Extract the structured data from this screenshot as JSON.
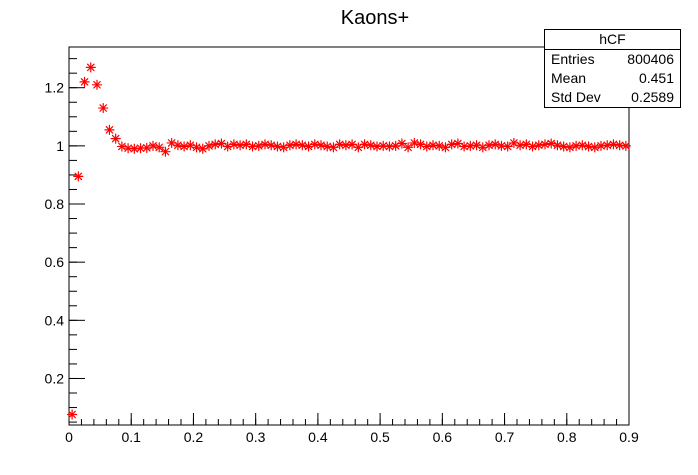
{
  "chart_data": {
    "type": "scatter",
    "title": "Kaons+",
    "xlim": [
      0,
      0.9
    ],
    "ylim": [
      0.04,
      1.34
    ],
    "x_ticks": [
      "0",
      "0.1",
      "0.2",
      "0.3",
      "0.4",
      "0.5",
      "0.6",
      "0.7",
      "0.8",
      "0.9"
    ],
    "y_ticks": [
      "0.2",
      "0.4",
      "0.6",
      "0.8",
      "1",
      "1.2"
    ],
    "marker": "star",
    "marker_color": "#ff0000",
    "grid": false,
    "series": [
      {
        "x": [
          0.005,
          0.015,
          0.025,
          0.035,
          0.045,
          0.055,
          0.065,
          0.075,
          0.085,
          0.095,
          0.105,
          0.115,
          0.125,
          0.135,
          0.145,
          0.155,
          0.165,
          0.175,
          0.185,
          0.195,
          0.205,
          0.215,
          0.225,
          0.235,
          0.245,
          0.255,
          0.265,
          0.275,
          0.285,
          0.295,
          0.305,
          0.315,
          0.325,
          0.335,
          0.345,
          0.355,
          0.365,
          0.375,
          0.385,
          0.395,
          0.405,
          0.415,
          0.425,
          0.435,
          0.445,
          0.455,
          0.465,
          0.475,
          0.485,
          0.495,
          0.505,
          0.515,
          0.525,
          0.535,
          0.545,
          0.555,
          0.565,
          0.575,
          0.585,
          0.595,
          0.605,
          0.615,
          0.625,
          0.635,
          0.645,
          0.655,
          0.665,
          0.675,
          0.685,
          0.695,
          0.705,
          0.715,
          0.725,
          0.735,
          0.745,
          0.755,
          0.765,
          0.775,
          0.785,
          0.795,
          0.805,
          0.815,
          0.825,
          0.835,
          0.845,
          0.855,
          0.865,
          0.875,
          0.885,
          0.895
        ],
        "y": [
          0.076,
          0.895,
          1.22,
          1.27,
          1.21,
          1.13,
          1.055,
          1.025,
          0.998,
          0.992,
          0.99,
          0.992,
          0.993,
          1.0,
          0.995,
          0.98,
          1.01,
          1.002,
          0.998,
          1.002,
          0.995,
          0.99,
          1.0,
          1.005,
          1.008,
          0.998,
          1.005,
          1.002,
          1.005,
          0.998,
          1.0,
          1.005,
          1.002,
          0.998,
          0.995,
          1.002,
          1.005,
          1.002,
          0.998,
          1.005,
          1.002,
          0.998,
          0.995,
          1.005,
          1.002,
          1.005,
          0.995,
          1.005,
          1.002,
          0.998,
          1.0,
          0.998,
          1.0,
          1.008,
          0.995,
          1.01,
          1.005,
          0.998,
          1.002,
          1.0,
          0.995,
          1.005,
          1.008,
          0.998,
          1.0,
          1.002,
          0.995,
          1.002,
          1.005,
          1.0,
          0.998,
          1.01,
          1.002,
          1.005,
          0.998,
          1.002,
          1.005,
          1.008,
          1.002,
          0.998,
          0.995,
          1.0,
          1.002,
          0.998,
          0.995,
          1.0,
          1.002,
          1.005,
          1.002,
          1.0
        ]
      }
    ]
  },
  "stats": {
    "title": "hCF",
    "rows": [
      {
        "label": "Entries",
        "value": "800406"
      },
      {
        "label": "Mean",
        "value": "0.451"
      },
      {
        "label": "Std Dev",
        "value": "0.2589"
      }
    ]
  }
}
